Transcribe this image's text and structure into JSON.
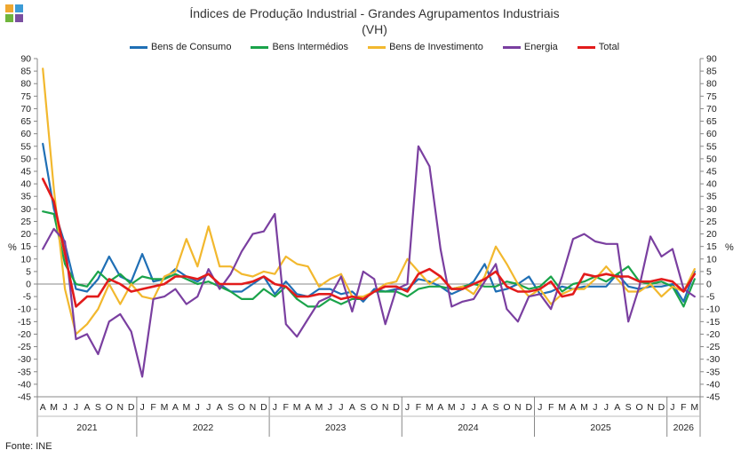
{
  "title": "Índices de Produção Industrial - Grandes Agrupamentos Industriais",
  "subtitle": "(VH)",
  "source": "Fonte: INE",
  "logo_colors": [
    "#f0a830",
    "#3c9bd6",
    "#6fb53c",
    "#7a4fa0"
  ],
  "chart_data": {
    "type": "line",
    "ylabel_left": "%",
    "ylabel_right": "%",
    "ylim": [
      -45,
      90
    ],
    "ytick_step": 5,
    "grid": false,
    "legend_position": "top",
    "x": [
      "A",
      "M",
      "J",
      "J",
      "A",
      "S",
      "O",
      "N",
      "D",
      "J",
      "F",
      "M",
      "A",
      "M",
      "J",
      "J",
      "A",
      "S",
      "O",
      "N",
      "D",
      "J",
      "F",
      "M",
      "A",
      "M",
      "J",
      "J",
      "A",
      "S",
      "O",
      "N",
      "D",
      "J",
      "F",
      "M",
      "A",
      "M",
      "J",
      "J",
      "A",
      "S",
      "O",
      "N",
      "D",
      "J",
      "F",
      "M",
      "A",
      "M",
      "J",
      "J",
      "A",
      "S",
      "O",
      "N",
      "D",
      "J",
      "F",
      "M"
    ],
    "years": [
      {
        "label": "2021",
        "start": 0,
        "end": 8
      },
      {
        "label": "2022",
        "start": 9,
        "end": 20
      },
      {
        "label": "2023",
        "start": 21,
        "end": 32
      },
      {
        "label": "2024",
        "start": 33,
        "end": 44
      },
      {
        "label": "2025",
        "start": 45,
        "end": 56
      },
      {
        "label": "2026",
        "start": 57,
        "end": 59
      }
    ],
    "series": [
      {
        "name": "Bens de Consumo",
        "color": "#1f6fb5",
        "values": [
          56,
          30,
          16,
          -2,
          -3,
          2,
          11,
          3,
          1,
          12,
          1,
          2,
          6,
          3,
          1,
          4,
          0,
          -3,
          -3,
          0,
          3,
          -4,
          1,
          -4,
          -5,
          -2,
          -2,
          -4,
          -3,
          -7,
          -2,
          -3,
          -2,
          -2,
          2,
          1,
          -1,
          -4,
          -2,
          1,
          8,
          -3,
          -2,
          0,
          3,
          -4,
          -3,
          -1,
          -2,
          -1,
          -1,
          -1,
          4,
          -1,
          -2,
          -1,
          -1,
          0,
          -7,
          5
        ]
      },
      {
        "name": "Bens Intermédios",
        "color": "#1aa34a",
        "values": [
          29,
          28,
          8,
          0,
          -1,
          5,
          1,
          4,
          0,
          3,
          2,
          2,
          4,
          2,
          0,
          1,
          -1,
          -3,
          -6,
          -6,
          -2,
          -5,
          -1,
          -6,
          -9,
          -9,
          -6,
          -8,
          -6,
          -6,
          -3,
          -3,
          -3,
          -5,
          -2,
          -1,
          -1,
          -2,
          -1,
          0,
          -1,
          -1,
          1,
          0,
          -2,
          -1,
          3,
          -3,
          0,
          1,
          3,
          1,
          4,
          7,
          1,
          0,
          1,
          -1,
          -9,
          2
        ]
      },
      {
        "name": "Bens de Investimento",
        "color": "#f2b82e",
        "values": [
          86,
          38,
          -2,
          -20,
          -16,
          -10,
          0,
          -8,
          0,
          -5,
          -6,
          3,
          5,
          18,
          7,
          23,
          7,
          7,
          4,
          3,
          5,
          4,
          11,
          8,
          7,
          -1,
          2,
          4,
          -5,
          -5,
          -3,
          0,
          1,
          10,
          5,
          0,
          3,
          -2,
          -1,
          -4,
          3,
          15,
          8,
          0,
          -5,
          -2,
          -8,
          -4,
          -2,
          -2,
          2,
          7,
          2,
          -3,
          -3,
          0,
          -5,
          -1,
          -3,
          6
        ]
      },
      {
        "name": "Energia",
        "color": "#7a3fa0",
        "values": [
          14,
          22,
          17,
          -22,
          -20,
          -28,
          -15,
          -12,
          -19,
          -37,
          -6,
          -5,
          -2,
          -8,
          -5,
          6,
          -2,
          4,
          13,
          20,
          21,
          28,
          -16,
          -21,
          -14,
          -7,
          -5,
          3,
          -11,
          5,
          2,
          -16,
          -2,
          0,
          55,
          47,
          14,
          -9,
          -7,
          -6,
          1,
          8,
          -10,
          -15,
          -5,
          -4,
          -10,
          3,
          18,
          20,
          17,
          16,
          16,
          -15,
          -1,
          19,
          11,
          14,
          -2,
          -5
        ]
      },
      {
        "name": "Total",
        "color": "#e21b1b",
        "values": [
          42,
          33,
          12,
          -9,
          -5,
          -5,
          2,
          0,
          -3,
          -2,
          -1,
          0,
          3,
          3,
          2,
          4,
          0,
          0,
          0,
          1,
          3,
          0,
          -1,
          -5,
          -5,
          -4,
          -4,
          -6,
          -5,
          -6,
          -3,
          -1,
          -1,
          -3,
          4,
          6,
          3,
          -2,
          -2,
          0,
          2,
          5,
          -1,
          -3,
          -3,
          -2,
          1,
          -5,
          -4,
          4,
          3,
          4,
          3,
          3,
          1,
          1,
          2,
          1,
          -3,
          4
        ]
      }
    ]
  }
}
